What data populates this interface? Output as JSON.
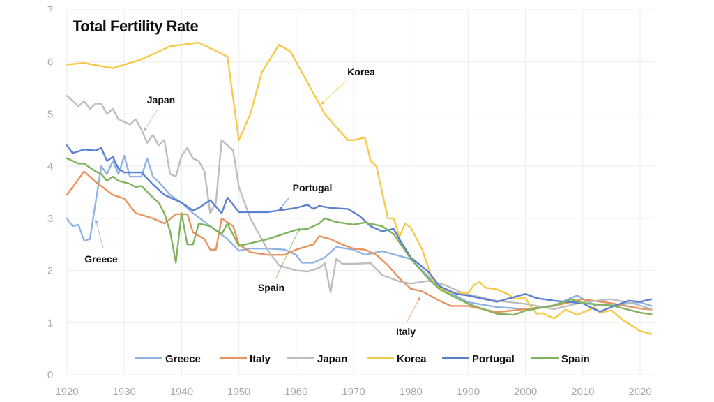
{
  "chart_data": {
    "type": "line",
    "title": "Total Fertility Rate",
    "xlabel": "",
    "ylabel": "",
    "xlim": [
      1920,
      2022
    ],
    "ylim": [
      0,
      7
    ],
    "x_ticks": [
      "1920",
      "1930",
      "1940",
      "1950",
      "1960",
      "1970",
      "1980",
      "1990",
      "2000",
      "2010",
      "2020"
    ],
    "y_ticks": [
      "0",
      "1",
      "2",
      "3",
      "4",
      "5",
      "6",
      "7"
    ],
    "grid": true,
    "legend_position": "bottom",
    "series": [
      {
        "name": "Greece",
        "color": "#8fb3e3",
        "points": [
          [
            1920,
            3.0
          ],
          [
            1921,
            2.85
          ],
          [
            1922,
            2.88
          ],
          [
            1923,
            2.57
          ],
          [
            1924,
            2.6
          ],
          [
            1926,
            4.0
          ],
          [
            1927,
            3.85
          ],
          [
            1928,
            4.1
          ],
          [
            1929,
            3.85
          ],
          [
            1930,
            4.2
          ],
          [
            1931,
            3.8
          ],
          [
            1933,
            3.8
          ],
          [
            1934,
            4.15
          ],
          [
            1935,
            3.8
          ],
          [
            1936,
            3.7
          ],
          [
            1938,
            3.45
          ],
          [
            1940,
            3.3
          ],
          [
            1942,
            3.1
          ],
          [
            1945,
            2.85
          ],
          [
            1948,
            2.6
          ],
          [
            1950,
            2.38
          ],
          [
            1952,
            2.42
          ],
          [
            1955,
            2.42
          ],
          [
            1958,
            2.4
          ],
          [
            1960,
            2.3
          ],
          [
            1961,
            2.15
          ],
          [
            1963,
            2.15
          ],
          [
            1965,
            2.25
          ],
          [
            1967,
            2.45
          ],
          [
            1970,
            2.4
          ],
          [
            1972,
            2.3
          ],
          [
            1975,
            2.37
          ],
          [
            1978,
            2.28
          ],
          [
            1980,
            2.22
          ],
          [
            1982,
            2.0
          ],
          [
            1985,
            1.68
          ],
          [
            1990,
            1.39
          ],
          [
            1995,
            1.3
          ],
          [
            2000,
            1.26
          ],
          [
            2005,
            1.33
          ],
          [
            2009,
            1.52
          ],
          [
            2012,
            1.34
          ],
          [
            2015,
            1.33
          ],
          [
            2020,
            1.39
          ],
          [
            2022,
            1.32
          ]
        ]
      },
      {
        "name": "Italy",
        "color": "#e8935f",
        "points": [
          [
            1920,
            3.45
          ],
          [
            1923,
            3.9
          ],
          [
            1925,
            3.7
          ],
          [
            1928,
            3.45
          ],
          [
            1930,
            3.38
          ],
          [
            1932,
            3.1
          ],
          [
            1935,
            3.0
          ],
          [
            1937,
            2.9
          ],
          [
            1939,
            3.08
          ],
          [
            1941,
            3.08
          ],
          [
            1942,
            2.73
          ],
          [
            1944,
            2.6
          ],
          [
            1945,
            2.4
          ],
          [
            1946,
            2.4
          ],
          [
            1947,
            3.0
          ],
          [
            1949,
            2.85
          ],
          [
            1950,
            2.5
          ],
          [
            1952,
            2.35
          ],
          [
            1955,
            2.3
          ],
          [
            1958,
            2.3
          ],
          [
            1960,
            2.4
          ],
          [
            1963,
            2.5
          ],
          [
            1964,
            2.66
          ],
          [
            1966,
            2.6
          ],
          [
            1968,
            2.5
          ],
          [
            1970,
            2.42
          ],
          [
            1972,
            2.4
          ],
          [
            1974,
            2.3
          ],
          [
            1976,
            2.1
          ],
          [
            1978,
            1.85
          ],
          [
            1980,
            1.65
          ],
          [
            1982,
            1.6
          ],
          [
            1985,
            1.42
          ],
          [
            1987,
            1.32
          ],
          [
            1990,
            1.32
          ],
          [
            1995,
            1.2
          ],
          [
            2000,
            1.26
          ],
          [
            2005,
            1.32
          ],
          [
            2010,
            1.45
          ],
          [
            2015,
            1.37
          ],
          [
            2020,
            1.27
          ],
          [
            2022,
            1.25
          ]
        ]
      },
      {
        "name": "Japan",
        "color": "#bdbdbd",
        "points": [
          [
            1920,
            5.35
          ],
          [
            1921,
            5.25
          ],
          [
            1922,
            5.15
          ],
          [
            1923,
            5.25
          ],
          [
            1924,
            5.1
          ],
          [
            1925,
            5.2
          ],
          [
            1926,
            5.2
          ],
          [
            1927,
            5.0
          ],
          [
            1928,
            5.1
          ],
          [
            1929,
            4.9
          ],
          [
            1930,
            4.85
          ],
          [
            1931,
            4.8
          ],
          [
            1932,
            4.9
          ],
          [
            1933,
            4.7
          ],
          [
            1934,
            4.45
          ],
          [
            1935,
            4.6
          ],
          [
            1936,
            4.4
          ],
          [
            1937,
            4.5
          ],
          [
            1938,
            3.85
          ],
          [
            1939,
            3.8
          ],
          [
            1940,
            4.2
          ],
          [
            1941,
            4.35
          ],
          [
            1942,
            4.15
          ],
          [
            1943,
            4.1
          ],
          [
            1944,
            3.9
          ],
          [
            1945,
            3.1
          ],
          [
            1946,
            3.3
          ],
          [
            1947,
            4.5
          ],
          [
            1948,
            4.4
          ],
          [
            1949,
            4.3
          ],
          [
            1950,
            3.6
          ],
          [
            1952,
            3.0
          ],
          [
            1955,
            2.4
          ],
          [
            1957,
            2.1
          ],
          [
            1960,
            2.0
          ],
          [
            1962,
            1.98
          ],
          [
            1964,
            2.05
          ],
          [
            1965,
            2.14
          ],
          [
            1966,
            1.58
          ],
          [
            1967,
            2.23
          ],
          [
            1968,
            2.13
          ],
          [
            1970,
            2.13
          ],
          [
            1973,
            2.14
          ],
          [
            1975,
            1.91
          ],
          [
            1978,
            1.79
          ],
          [
            1980,
            1.75
          ],
          [
            1983,
            1.8
          ],
          [
            1986,
            1.72
          ],
          [
            1989,
            1.57
          ],
          [
            1990,
            1.54
          ],
          [
            1995,
            1.42
          ],
          [
            2000,
            1.36
          ],
          [
            2005,
            1.26
          ],
          [
            2010,
            1.39
          ],
          [
            2015,
            1.45
          ],
          [
            2019,
            1.36
          ],
          [
            2022,
            1.26
          ]
        ]
      },
      {
        "name": "Korea",
        "color": "#f7c948",
        "points": [
          [
            1920,
            5.95
          ],
          [
            1923,
            5.98
          ],
          [
            1928,
            5.88
          ],
          [
            1933,
            6.05
          ],
          [
            1938,
            6.3
          ],
          [
            1943,
            6.37
          ],
          [
            1948,
            6.1
          ],
          [
            1950,
            4.5
          ],
          [
            1952,
            5.0
          ],
          [
            1954,
            5.8
          ],
          [
            1957,
            6.33
          ],
          [
            1959,
            6.2
          ],
          [
            1961,
            5.8
          ],
          [
            1965,
            5.0
          ],
          [
            1969,
            4.5
          ],
          [
            1970,
            4.5
          ],
          [
            1972,
            4.55
          ],
          [
            1973,
            4.1
          ],
          [
            1974,
            4.0
          ],
          [
            1976,
            3.0
          ],
          [
            1977,
            3.0
          ],
          [
            1978,
            2.65
          ],
          [
            1979,
            2.9
          ],
          [
            1980,
            2.82
          ],
          [
            1982,
            2.4
          ],
          [
            1984,
            1.74
          ],
          [
            1986,
            1.6
          ],
          [
            1988,
            1.56
          ],
          [
            1990,
            1.57
          ],
          [
            1991,
            1.72
          ],
          [
            1992,
            1.78
          ],
          [
            1993,
            1.67
          ],
          [
            1995,
            1.64
          ],
          [
            1997,
            1.54
          ],
          [
            1998,
            1.46
          ],
          [
            2000,
            1.47
          ],
          [
            2001,
            1.3
          ],
          [
            2002,
            1.17
          ],
          [
            2003,
            1.18
          ],
          [
            2005,
            1.08
          ],
          [
            2007,
            1.25
          ],
          [
            2009,
            1.15
          ],
          [
            2011,
            1.24
          ],
          [
            2012,
            1.3
          ],
          [
            2013,
            1.19
          ],
          [
            2015,
            1.24
          ],
          [
            2017,
            1.05
          ],
          [
            2018,
            0.98
          ],
          [
            2020,
            0.84
          ],
          [
            2022,
            0.78
          ]
        ]
      },
      {
        "name": "Portugal",
        "color": "#5b7fcf",
        "points": [
          [
            1920,
            4.4
          ],
          [
            1921,
            4.25
          ],
          [
            1923,
            4.32
          ],
          [
            1925,
            4.3
          ],
          [
            1926,
            4.35
          ],
          [
            1927,
            4.1
          ],
          [
            1928,
            4.18
          ],
          [
            1929,
            3.95
          ],
          [
            1930,
            3.88
          ],
          [
            1933,
            3.88
          ],
          [
            1935,
            3.65
          ],
          [
            1937,
            3.45
          ],
          [
            1940,
            3.3
          ],
          [
            1942,
            3.15
          ],
          [
            1943,
            3.2
          ],
          [
            1945,
            3.35
          ],
          [
            1947,
            3.1
          ],
          [
            1948,
            3.4
          ],
          [
            1950,
            3.12
          ],
          [
            1955,
            3.12
          ],
          [
            1960,
            3.2
          ],
          [
            1962,
            3.26
          ],
          [
            1963,
            3.18
          ],
          [
            1964,
            3.24
          ],
          [
            1966,
            3.2
          ],
          [
            1969,
            3.18
          ],
          [
            1971,
            3.05
          ],
          [
            1973,
            2.85
          ],
          [
            1975,
            2.75
          ],
          [
            1977,
            2.8
          ],
          [
            1978,
            2.6
          ],
          [
            1980,
            2.25
          ],
          [
            1983,
            1.98
          ],
          [
            1985,
            1.7
          ],
          [
            1988,
            1.55
          ],
          [
            1990,
            1.52
          ],
          [
            1995,
            1.4
          ],
          [
            2000,
            1.55
          ],
          [
            2002,
            1.47
          ],
          [
            2005,
            1.42
          ],
          [
            2010,
            1.37
          ],
          [
            2012,
            1.26
          ],
          [
            2013,
            1.21
          ],
          [
            2015,
            1.3
          ],
          [
            2018,
            1.42
          ],
          [
            2020,
            1.4
          ],
          [
            2022,
            1.45
          ]
        ]
      },
      {
        "name": "Spain",
        "color": "#7fb45c",
        "points": [
          [
            1920,
            4.15
          ],
          [
            1922,
            4.05
          ],
          [
            1923,
            4.05
          ],
          [
            1925,
            3.9
          ],
          [
            1926,
            3.85
          ],
          [
            1927,
            3.72
          ],
          [
            1928,
            3.8
          ],
          [
            1929,
            3.72
          ],
          [
            1931,
            3.66
          ],
          [
            1932,
            3.6
          ],
          [
            1933,
            3.62
          ],
          [
            1935,
            3.4
          ],
          [
            1936,
            3.3
          ],
          [
            1937,
            3.1
          ],
          [
            1938,
            2.75
          ],
          [
            1939,
            2.15
          ],
          [
            1940,
            3.1
          ],
          [
            1941,
            2.5
          ],
          [
            1942,
            2.5
          ],
          [
            1943,
            2.9
          ],
          [
            1945,
            2.85
          ],
          [
            1947,
            2.7
          ],
          [
            1948,
            2.9
          ],
          [
            1950,
            2.47
          ],
          [
            1955,
            2.6
          ],
          [
            1960,
            2.78
          ],
          [
            1962,
            2.8
          ],
          [
            1964,
            2.9
          ],
          [
            1965,
            3.0
          ],
          [
            1967,
            2.93
          ],
          [
            1970,
            2.88
          ],
          [
            1972,
            2.92
          ],
          [
            1975,
            2.85
          ],
          [
            1977,
            2.7
          ],
          [
            1980,
            2.22
          ],
          [
            1983,
            1.85
          ],
          [
            1985,
            1.64
          ],
          [
            1990,
            1.36
          ],
          [
            1995,
            1.17
          ],
          [
            1998,
            1.15
          ],
          [
            2000,
            1.23
          ],
          [
            2005,
            1.33
          ],
          [
            2008,
            1.45
          ],
          [
            2010,
            1.37
          ],
          [
            2015,
            1.33
          ],
          [
            2020,
            1.19
          ],
          [
            2022,
            1.16
          ]
        ]
      }
    ],
    "annotations": [
      "Korea",
      "Japan",
      "Portugal",
      "Greece",
      "Spain",
      "Italy"
    ]
  }
}
